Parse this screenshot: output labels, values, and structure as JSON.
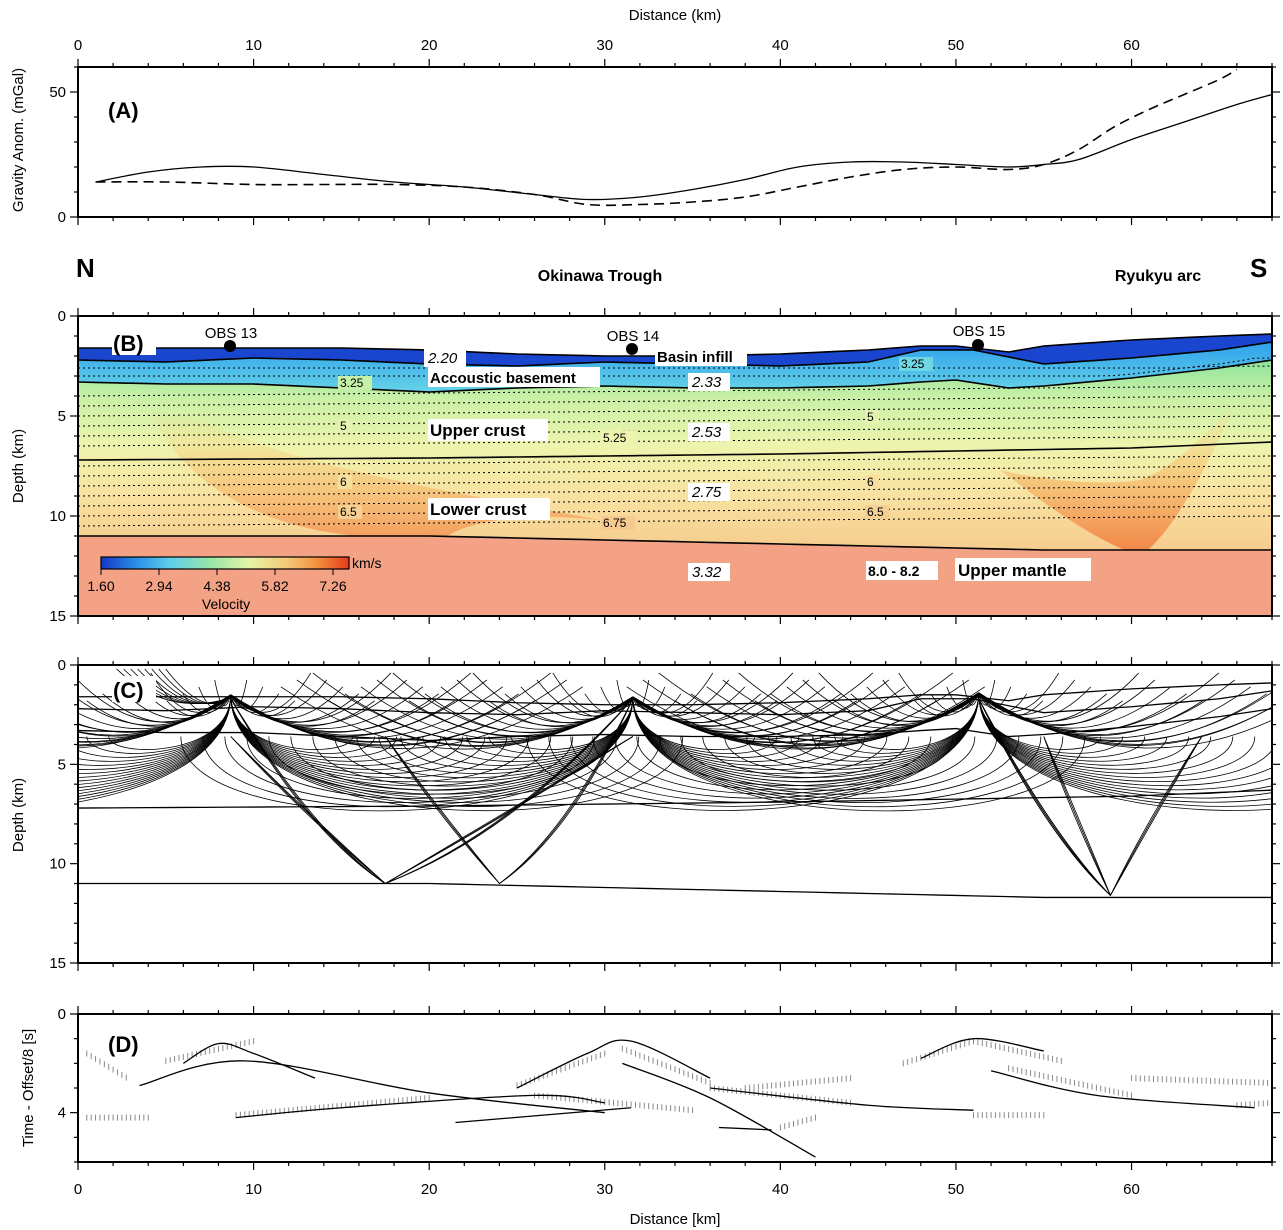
{
  "top_axis_title": "Distance (km)",
  "bottom_axis_title": "Distance [km]",
  "x_ticks": [
    "0",
    "10",
    "20",
    "30",
    "40",
    "50",
    "60"
  ],
  "chart_data": [
    {
      "panel": "A",
      "type": "line",
      "ylabel": "Gravity Anom. (mGal)",
      "xlim": [
        0,
        68
      ],
      "ylim": [
        0,
        60
      ],
      "y_ticks": [
        "0",
        "50"
      ],
      "series": [
        {
          "style": "solid",
          "x": [
            1,
            4,
            7,
            10,
            14,
            18,
            22,
            26,
            29,
            32,
            35,
            38,
            41,
            44,
            47,
            50,
            53,
            55,
            57,
            60,
            63,
            66,
            68
          ],
          "y": [
            14,
            18,
            20,
            20,
            17,
            14,
            12,
            9,
            7,
            8,
            11,
            15,
            20,
            22,
            22,
            21,
            20,
            21,
            23,
            31,
            38,
            45,
            49
          ]
        },
        {
          "style": "dashed",
          "x": [
            1,
            5,
            10,
            14,
            18,
            22,
            26,
            29,
            32,
            35,
            38,
            41,
            44,
            47,
            50,
            53,
            55,
            57,
            59,
            61,
            63,
            65,
            66
          ],
          "y": [
            14,
            14,
            13,
            13,
            13,
            12,
            9,
            5,
            5,
            6,
            8,
            12,
            16,
            19,
            20,
            19,
            21,
            27,
            36,
            43,
            49,
            55,
            59
          ]
        }
      ]
    },
    {
      "panel": "B",
      "type": "heatmap",
      "ylabel": "Depth (km)",
      "xlim": [
        0,
        68
      ],
      "ylim": [
        15,
        0
      ],
      "y_ticks": [
        "0",
        "5",
        "10",
        "15"
      ],
      "colorbar": {
        "unit": "km/s",
        "title": "Velocity",
        "ticks": [
          "1.60",
          "2.94",
          "4.38",
          "5.82",
          "7.26"
        ],
        "colors": [
          "#1536c7",
          "#2a8ee6",
          "#5fd0ea",
          "#9be7a6",
          "#e6f5a6",
          "#f5c977",
          "#f28c3b",
          "#e53c1c"
        ]
      },
      "obs": [
        {
          "name": "OBS 13",
          "x": 8.7,
          "depth": 1.5
        },
        {
          "name": "OBS 14",
          "x": 31.6,
          "depth": 1.6
        },
        {
          "name": "OBS 15",
          "x": 51.3,
          "depth": 1.4
        }
      ],
      "layer_labels": [
        "Basin infill",
        "Accoustic basement",
        "Upper crust",
        "Lower crust",
        "Upper mantle"
      ],
      "densities": [
        "2.20",
        "2.33",
        "2.53",
        "2.75",
        "3.32"
      ],
      "mantle_velocity": "8.0 - 8.2",
      "velocity_contours": [
        "3.25",
        "3.25",
        "5",
        "5",
        "5.25",
        "6",
        "6",
        "6.5",
        "6.5",
        "6.75"
      ],
      "regions": {
        "north": "N",
        "south": "S",
        "center": "Okinawa Trough",
        "right": "Ryukyu arc"
      },
      "interfaces": [
        {
          "name": "seafloor",
          "x": [
            0,
            5,
            10,
            15,
            20,
            25,
            30,
            35,
            40,
            45,
            48,
            50,
            53,
            55,
            60,
            65,
            68
          ],
          "depth": [
            1.6,
            1.6,
            1.6,
            1.6,
            1.7,
            1.9,
            2.0,
            2.0,
            1.9,
            1.7,
            1.5,
            1.5,
            1.8,
            1.5,
            1.2,
            1.0,
            0.9
          ]
        },
        {
          "name": "basement",
          "x": [
            0,
            5,
            10,
            15,
            20,
            25,
            30,
            35,
            40,
            45,
            48,
            51,
            55,
            60,
            65,
            68
          ],
          "depth": [
            2.2,
            2.3,
            2.1,
            2.2,
            2.4,
            2.5,
            2.3,
            2.4,
            2.5,
            2.3,
            1.7,
            1.7,
            2.4,
            2.1,
            1.7,
            1.3
          ]
        },
        {
          "name": "upper-crust-top",
          "x": [
            0,
            5,
            10,
            15,
            20,
            25,
            30,
            35,
            40,
            45,
            48,
            50,
            53,
            55,
            60,
            65,
            68
          ],
          "depth": [
            3.3,
            3.4,
            3.4,
            3.6,
            3.8,
            3.6,
            3.5,
            3.6,
            3.6,
            3.5,
            3.3,
            3.2,
            3.6,
            3.5,
            3.1,
            2.6,
            2.2
          ]
        },
        {
          "name": "mid-crust",
          "x": [
            0,
            20,
            40,
            60,
            68
          ],
          "depth": [
            7.2,
            7.1,
            6.9,
            6.6,
            6.3
          ]
        },
        {
          "name": "moho",
          "x": [
            0,
            10,
            20,
            25,
            30,
            40,
            50,
            55,
            60,
            68
          ],
          "depth": [
            11.0,
            11.0,
            11.0,
            11.1,
            11.2,
            11.4,
            11.6,
            11.7,
            11.7,
            11.7
          ]
        }
      ]
    },
    {
      "panel": "C",
      "type": "line",
      "ylabel": "Depth (km)",
      "xlim": [
        0,
        68
      ],
      "ylim": [
        15,
        0
      ],
      "y_ticks": [
        "0",
        "5",
        "10",
        "15"
      ]
    },
    {
      "panel": "D",
      "type": "scatter",
      "ylabel": "Time - Offset/8 [s]",
      "xlabel": "Distance [km]",
      "xlim": [
        0,
        68
      ],
      "ylim": [
        6,
        0
      ],
      "y_ticks": [
        "0",
        "4"
      ]
    }
  ],
  "colors": {
    "mantle": "#f4a286",
    "line": "#000000",
    "picks": "#8a8a8a"
  }
}
